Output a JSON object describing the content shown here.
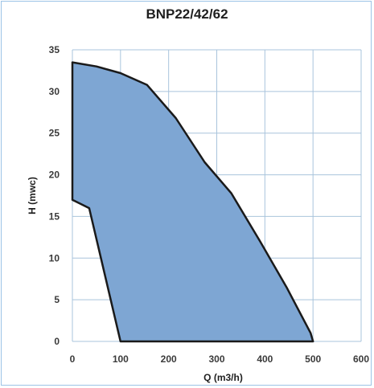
{
  "chart_data": {
    "type": "area",
    "title": "BNP22/42/62",
    "xlabel": "Q (m3/h)",
    "ylabel": "H (mwc)",
    "xlim": [
      0,
      600
    ],
    "ylim": [
      0,
      35
    ],
    "x_ticks": [
      "0",
      "100",
      "200",
      "300",
      "400",
      "500",
      "600"
    ],
    "y_ticks": [
      "0",
      "5",
      "10",
      "15",
      "20",
      "25",
      "30",
      "35"
    ],
    "grid": true,
    "legend": "none",
    "series": [
      {
        "polygon": [
          {
            "x": 0,
            "y": 33.5
          },
          {
            "x": 50,
            "y": 33.0
          },
          {
            "x": 100,
            "y": 32.2
          },
          {
            "x": 155,
            "y": 30.8
          },
          {
            "x": 215,
            "y": 26.8
          },
          {
            "x": 275,
            "y": 21.5
          },
          {
            "x": 330,
            "y": 17.8
          },
          {
            "x": 390,
            "y": 12.0
          },
          {
            "x": 445,
            "y": 6.5
          },
          {
            "x": 495,
            "y": 1.0
          },
          {
            "x": 500,
            "y": 0
          },
          {
            "x": 100,
            "y": 0
          },
          {
            "x": 35,
            "y": 16.0
          },
          {
            "x": 0,
            "y": 17.0
          }
        ]
      }
    ],
    "colors": {
      "fill": "#7ea6d3",
      "outline": "#1a1a1a",
      "grid": "#a9c4dc",
      "frame": "#9cc3e6"
    }
  }
}
